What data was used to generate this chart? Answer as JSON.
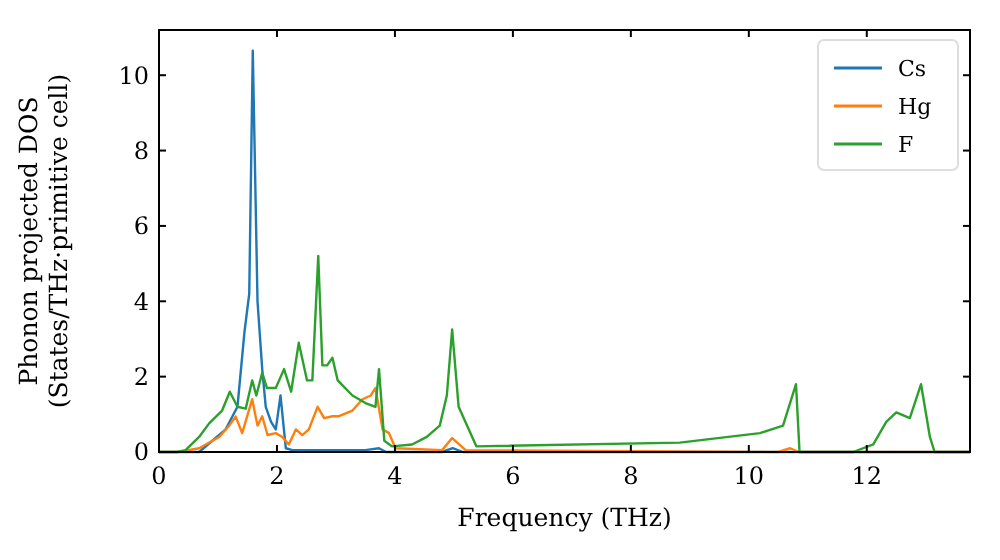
{
  "chart_data": {
    "type": "line",
    "xlabel": "Frequency (THz)",
    "ylabel": "Phonon projected DOS\n(States/THz·primitive cell)",
    "xlim": [
      0,
      13.75
    ],
    "ylim": [
      0,
      11.2
    ],
    "xticks": [
      0,
      2,
      4,
      6,
      8,
      10,
      12
    ],
    "yticks": [
      0,
      2,
      4,
      6,
      8,
      10
    ],
    "grid": false,
    "legend": "top right",
    "line_style": "solid",
    "series": [
      {
        "name": "Cs",
        "color": "#1f77b4",
        "x": [
          0,
          0.68,
          1.13,
          1.33,
          1.45,
          1.53,
          1.59,
          1.67,
          1.75,
          1.81,
          1.9,
          1.98,
          2.06,
          2.15,
          2.26,
          3.5,
          3.73,
          3.85,
          4.8,
          4.98,
          5.15,
          13.75
        ],
        "values": [
          0,
          0,
          0.6,
          1.2,
          3.2,
          4.2,
          10.65,
          4,
          2.2,
          1.2,
          0.8,
          0.6,
          1.5,
          0.1,
          0.05,
          0.05,
          0.1,
          0,
          0,
          0.1,
          0,
          0
        ]
      },
      {
        "name": "Hg",
        "color": "#ff7f0e",
        "x": [
          0,
          0.34,
          0.68,
          1.02,
          1.19,
          1.3,
          1.41,
          1.58,
          1.67,
          1.75,
          1.84,
          1.98,
          2.09,
          2.2,
          2.32,
          2.43,
          2.54,
          2.69,
          2.8,
          2.94,
          3.05,
          3.28,
          3.45,
          3.59,
          3.67,
          3.79,
          3.9,
          4.01,
          4.8,
          4.97,
          5.2,
          10.5,
          10.7,
          10.85,
          13.75
        ],
        "values": [
          0,
          0,
          0.1,
          0.4,
          0.7,
          0.94,
          0.5,
          1.4,
          0.7,
          0.95,
          0.45,
          0.5,
          0.4,
          0.2,
          0.6,
          0.45,
          0.6,
          1.2,
          0.9,
          0.95,
          0.95,
          1.1,
          1.4,
          1.5,
          1.7,
          0.6,
          0.5,
          0.1,
          0.05,
          0.37,
          0.05,
          0,
          0.1,
          0,
          0
        ]
      },
      {
        "name": "F",
        "color": "#2ca02c",
        "x": [
          0,
          0.3,
          0.45,
          0.68,
          0.85,
          1.07,
          1.2,
          1.33,
          1.47,
          1.58,
          1.65,
          1.75,
          1.83,
          1.98,
          2.12,
          2.24,
          2.37,
          2.51,
          2.6,
          2.7,
          2.77,
          2.85,
          2.94,
          3.03,
          3.28,
          3.5,
          3.67,
          3.73,
          3.82,
          3.95,
          4.29,
          4.54,
          4.76,
          4.88,
          4.97,
          5.08,
          5.38,
          8.83,
          10.19,
          10.58,
          10.8,
          10.86,
          11.77,
          12.11,
          12.33,
          12.5,
          12.73,
          12.92,
          13.07,
          13.15,
          13.75
        ],
        "values": [
          0,
          0,
          0.05,
          0.4,
          0.76,
          1.1,
          1.6,
          1.2,
          1.15,
          1.9,
          1.5,
          2.1,
          1.7,
          1.7,
          2.2,
          1.6,
          2.9,
          1.9,
          1.9,
          5.2,
          2.3,
          2.3,
          2.5,
          1.9,
          1.5,
          1.3,
          1.2,
          2.2,
          0.3,
          0.15,
          0.2,
          0.4,
          0.7,
          1.5,
          3.25,
          1.2,
          0.15,
          0.25,
          0.5,
          0.7,
          1.8,
          0,
          0,
          0.2,
          0.8,
          1.05,
          0.9,
          1.8,
          0.4,
          0,
          0
        ]
      }
    ]
  }
}
